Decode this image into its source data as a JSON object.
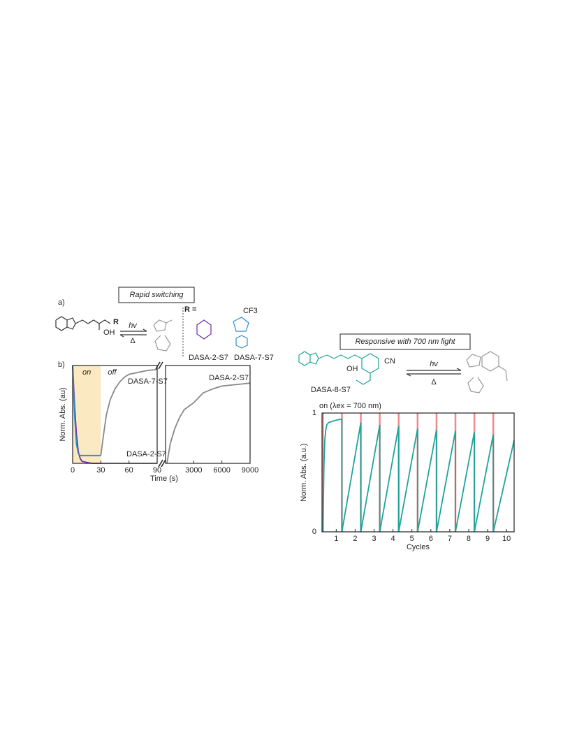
{
  "figure_a": {
    "label": "a)",
    "title": "Rapid switching",
    "hv": "hv",
    "delta": "Δ",
    "r_equals": "R =",
    "r_label": "R",
    "oh": "OH",
    "cf3": "CF3",
    "compounds": [
      "DASA-2-S7",
      "DASA-7-S7"
    ]
  },
  "figure_b": {
    "label": "b)"
  },
  "figure_c": {
    "title": "Responsive with 700 nm light",
    "hv": "hv",
    "delta": "Δ",
    "compound": "DASA-8-S7",
    "cn": "CN",
    "oh": "OH"
  },
  "chart_data": [
    {
      "type": "line",
      "ylabel": "Norm. Abs. (au)",
      "xlabel": "Time (s)",
      "xlim": [
        0,
        90
      ],
      "ylim": [
        0,
        1
      ],
      "xticks": [
        0,
        30,
        60,
        90
      ],
      "highlight": {
        "x": [
          0,
          30
        ],
        "label": "on",
        "color": "#fbe9c2"
      },
      "off_label": "off",
      "annotations": [
        {
          "text": "DASA-7-S7",
          "color": "#2f8ccc"
        },
        {
          "text": "DASA-2-S7",
          "color": "#6a2aa8"
        }
      ],
      "series": [
        {
          "color": "#6a2aa8",
          "x": [
            0,
            2,
            4,
            6,
            8,
            10,
            15,
            20,
            30
          ],
          "values": [
            1,
            0.6,
            0.3,
            0.12,
            0.05,
            0.02,
            0.01,
            0,
            0
          ]
        },
        {
          "color": "#888888",
          "x": [
            30,
            60,
            90
          ],
          "values": [
            0,
            0,
            0
          ]
        },
        {
          "color": "#2f8ccc",
          "x": [
            0,
            2,
            4,
            6,
            8,
            10,
            20,
            30
          ],
          "values": [
            1,
            0.5,
            0.2,
            0.1,
            0.08,
            0.08,
            0.08,
            0.08
          ]
        },
        {
          "color": "#888888",
          "x": [
            30,
            33,
            36,
            40,
            45,
            50,
            55,
            60,
            70,
            80,
            90
          ],
          "values": [
            0.08,
            0.3,
            0.5,
            0.65,
            0.76,
            0.83,
            0.88,
            0.91,
            0.93,
            0.95,
            0.96
          ]
        }
      ]
    },
    {
      "type": "line",
      "xlim": [
        0,
        9000
      ],
      "ylim": [
        0,
        1
      ],
      "xticks": [
        3000,
        6000,
        9000
      ],
      "annotations": [
        {
          "text": "DASA-2-S7",
          "color": "#6a2aa8"
        }
      ],
      "series": [
        {
          "color": "#888888",
          "x": [
            150,
            500,
            1000,
            1500,
            2000,
            3000,
            4000,
            5000,
            6000,
            7000,
            8000,
            9000
          ],
          "values": [
            0,
            0.2,
            0.36,
            0.47,
            0.55,
            0.62,
            0.72,
            0.76,
            0.79,
            0.8,
            0.81,
            0.82
          ]
        }
      ]
    },
    {
      "type": "line",
      "ylabel": "Norm. Abs. (a.u.)",
      "xlabel": "Cycles",
      "xlim": [
        0.25,
        10.4
      ],
      "ylim": [
        0,
        1
      ],
      "yticks": [
        0,
        1
      ],
      "xticks": [
        1,
        2,
        3,
        4,
        5,
        6,
        7,
        8,
        9,
        10
      ],
      "light": {
        "label": "on (λex = 700 nm)",
        "color": "#f08a8a",
        "x": [
          0.3,
          1.3,
          2.3,
          3.3,
          4.3,
          5.3,
          6.3,
          7.3,
          8.3,
          9.3
        ]
      },
      "series": [
        {
          "color": "#1fa39a",
          "x": [
            0.3,
            0.35,
            0.4,
            0.45,
            0.5,
            0.6,
            0.8,
            1.0,
            1.3,
            1.3,
            2.3,
            2.3,
            3.3,
            3.3,
            4.3,
            4.3,
            5.3,
            5.3,
            6.3,
            6.3,
            7.3,
            7.3,
            8.3,
            8.3,
            9.3,
            9.3,
            10.4
          ],
          "values": [
            0,
            0.55,
            0.78,
            0.86,
            0.9,
            0.92,
            0.93,
            0.94,
            0.95,
            0,
            0.92,
            0,
            0.9,
            0,
            0.89,
            0,
            0.87,
            0,
            0.86,
            0,
            0.85,
            0,
            0.84,
            0,
            0.82,
            0,
            0.77
          ]
        }
      ]
    }
  ]
}
